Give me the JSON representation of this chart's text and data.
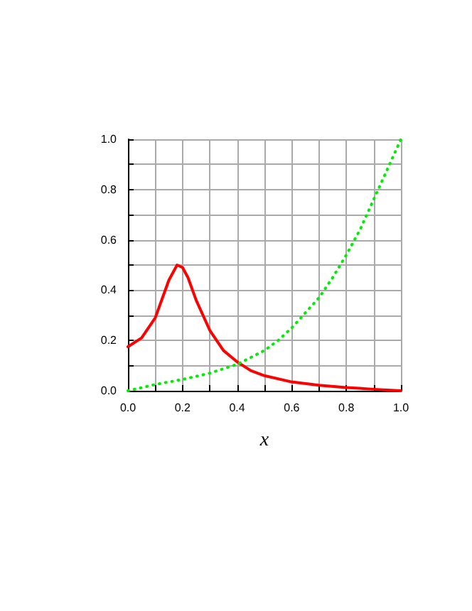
{
  "chart_data": {
    "type": "line",
    "xlabel": "x",
    "xlim": [
      0,
      1
    ],
    "ylim": [
      0,
      1
    ],
    "xticks": [
      {
        "value": 0,
        "label": "0.0"
      },
      {
        "value": 0.1,
        "label": null
      },
      0.2,
      {
        "value": 0.3,
        "label": null
      },
      0.4,
      {
        "value": 0.5,
        "label": null
      },
      0.6,
      {
        "value": 0.7,
        "label": null
      },
      0.8,
      {
        "value": 0.9,
        "label": null
      },
      {
        "value": 1,
        "label": "1.0"
      }
    ],
    "yticks": [
      {
        "value": 0,
        "label": "0.0"
      },
      {
        "value": 0.1,
        "label": null
      },
      0.2,
      {
        "value": 0.3,
        "label": null
      },
      0.4,
      {
        "value": 0.5,
        "label": null
      },
      0.6,
      {
        "value": 0.7,
        "label": null
      },
      0.8,
      {
        "value": 0.9,
        "label": null
      },
      {
        "value": 1,
        "label": "1.0"
      }
    ],
    "grid": true,
    "marker": "none",
    "series": [
      {
        "color": "#ff0000",
        "line_style": "solid",
        "x": [
          0,
          0.05,
          0.1,
          0.13,
          0.15,
          0.18,
          0.2,
          0.22,
          0.25,
          0.3,
          0.35,
          0.4,
          0.45,
          0.5,
          0.6,
          0.7,
          0.8,
          0.9,
          1
        ],
        "values": [
          0.175,
          0.21,
          0.29,
          0.38,
          0.44,
          0.5,
          0.49,
          0.45,
          0.36,
          0.24,
          0.16,
          0.115,
          0.08,
          0.06,
          0.035,
          0.022,
          0.013,
          0.006,
          0
        ]
      },
      {
        "color": "#00ee00",
        "line_style": "dotted",
        "x": [
          0,
          0.1,
          0.2,
          0.3,
          0.4,
          0.5,
          0.55,
          0.6,
          0.65,
          0.7,
          0.75,
          0.8,
          0.85,
          0.9,
          0.95,
          1
        ],
        "values": [
          0,
          0.025,
          0.045,
          0.07,
          0.105,
          0.16,
          0.2,
          0.25,
          0.31,
          0.37,
          0.45,
          0.54,
          0.64,
          0.76,
          0.88,
          1
        ]
      }
    ]
  }
}
